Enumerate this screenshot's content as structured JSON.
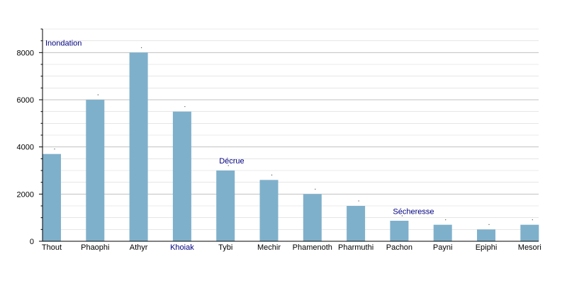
{
  "chart_data": {
    "type": "bar",
    "title": "",
    "xlabel": "",
    "ylabel": "",
    "ylim": [
      0,
      9000
    ],
    "yticks": [
      0,
      2000,
      4000,
      6000,
      8000
    ],
    "grid": true,
    "categories": [
      "Thout",
      "Phaophi",
      "Athyr",
      "Khoiak",
      "Tybi",
      "Mechir",
      "Phamenoth",
      "Pharmuthi",
      "Pachon",
      "Payni",
      "Epiphi",
      "Mesori"
    ],
    "values": [
      3700,
      6000,
      8000,
      5500,
      3000,
      2600,
      2000,
      1500,
      870,
      700,
      500,
      700
    ],
    "highlighted_category": "Khoiak",
    "annotations": [
      {
        "text": "Inondation",
        "x": "Thout",
        "y": 8300
      },
      {
        "text": "Décrue",
        "x": "Tybi",
        "y": 3300
      },
      {
        "text": "Sécheresse",
        "x": "Pachon",
        "y": 1150
      }
    ],
    "colors": {
      "bar": "#7fb0cb",
      "grid": "#d8d8d8",
      "grid_major": "#c0c0c0",
      "axis": "#000000",
      "annotation": "#000080",
      "highlight_label": "#000080"
    }
  }
}
